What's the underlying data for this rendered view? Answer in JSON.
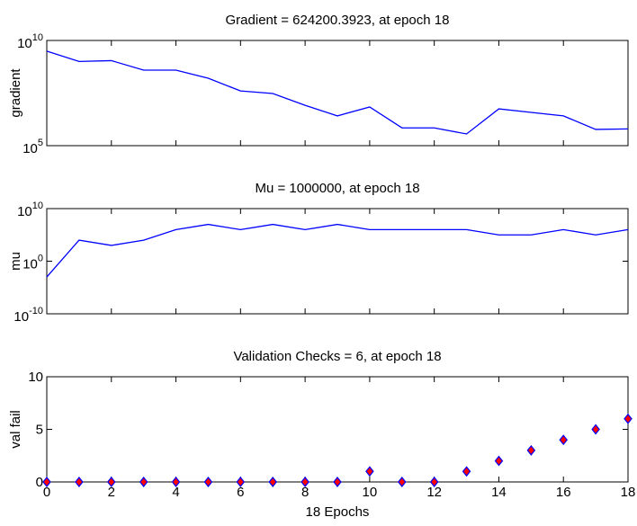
{
  "chart_data": [
    {
      "type": "line",
      "title": "Gradient = 624200.3923, at epoch 18",
      "ylabel": "gradient",
      "log": true,
      "color": "#0000ff",
      "x": [
        0,
        1,
        2,
        3,
        4,
        5,
        6,
        7,
        8,
        9,
        10,
        11,
        12,
        13,
        14,
        15,
        16,
        17,
        18
      ],
      "values": [
        3100000000,
        1000000000,
        1100000000,
        390000000,
        390000000,
        160000000,
        40000000,
        30000000,
        8300000,
        2600000,
        6900000,
        700000,
        700000,
        360000,
        5600000,
        3800000,
        2600000,
        590000,
        624200.3923
      ],
      "xlim": [
        0,
        18
      ],
      "xticks": [
        0,
        2,
        4,
        6,
        8,
        10,
        12,
        14,
        16,
        18
      ],
      "show_xtick_labels": false,
      "ylim": [
        100000,
        10000000000
      ],
      "yticks": [
        {
          "value": 100000,
          "label": "10^5"
        },
        {
          "value": 10000000000,
          "label": "10^10"
        }
      ]
    },
    {
      "type": "line",
      "title": "Mu = 1000000, at epoch 18",
      "ylabel": "mu",
      "log": true,
      "color": "#0000ff",
      "x": [
        0,
        1,
        2,
        3,
        4,
        5,
        6,
        7,
        8,
        9,
        10,
        11,
        12,
        13,
        14,
        15,
        16,
        17,
        18
      ],
      "values": [
        0.001,
        10000,
        1000,
        10000,
        1000000,
        10000000,
        1000000,
        10000000,
        1000000,
        10000000,
        1000000,
        1000000,
        1000000,
        1000000,
        100000,
        100000,
        1000000,
        100000,
        1000000
      ],
      "xlim": [
        0,
        18
      ],
      "xticks": [
        0,
        2,
        4,
        6,
        8,
        10,
        12,
        14,
        16,
        18
      ],
      "show_xtick_labels": false,
      "ylim": [
        1e-10,
        10000000000
      ],
      "yticks": [
        {
          "value": 1e-10,
          "label": "10^-10"
        },
        {
          "value": 1,
          "label": "10^0"
        },
        {
          "value": 10000000000,
          "label": "10^10"
        }
      ]
    },
    {
      "type": "scatter",
      "title": "Validation Checks = 6, at epoch 18",
      "ylabel": "val fail",
      "xlabel": "18 Epochs",
      "log": false,
      "color": "#ff0000",
      "edge_color": "#0000ff",
      "x": [
        0,
        1,
        2,
        3,
        4,
        5,
        6,
        7,
        8,
        9,
        10,
        11,
        12,
        13,
        14,
        15,
        16,
        17,
        18
      ],
      "values": [
        0,
        0,
        0,
        0,
        0,
        0,
        0,
        0,
        0,
        0,
        1,
        0,
        0,
        1,
        2,
        3,
        4,
        5,
        6
      ],
      "xlim": [
        0,
        18
      ],
      "xticks": [
        0,
        2,
        4,
        6,
        8,
        10,
        12,
        14,
        16,
        18
      ],
      "show_xtick_labels": true,
      "ylim": [
        0,
        10
      ],
      "yticks": [
        0,
        5,
        10
      ]
    }
  ]
}
